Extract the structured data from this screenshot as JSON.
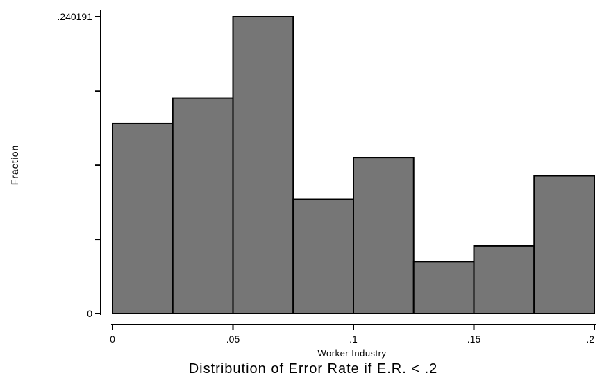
{
  "chart_data": {
    "type": "bar",
    "subtype": "histogram",
    "title": "Distribution of Error Rate if E.R. < .2",
    "xlabel": "Worker Industry",
    "ylabel": "Fraction",
    "bin_edges": [
      0,
      0.025,
      0.05,
      0.075,
      0.1,
      0.125,
      0.15,
      0.175,
      0.2
    ],
    "values": [
      0.1538,
      0.1742,
      0.240191,
      0.0923,
      0.1262,
      0.0419,
      0.0545,
      0.1114
    ],
    "xlim": [
      0,
      0.2
    ],
    "ylim": [
      0,
      0.240191
    ],
    "x_ticks": [
      {
        "value": 0,
        "label": "0"
      },
      {
        "value": 0.05,
        "label": ".05"
      },
      {
        "value": 0.1,
        "label": ".1"
      },
      {
        "value": 0.15,
        "label": ".15"
      },
      {
        "value": 0.2,
        "label": ".2"
      }
    ],
    "y_ticks_labeled": [
      {
        "value": 0,
        "label": "0"
      },
      {
        "value": 0.240191,
        "label": ".240191"
      }
    ],
    "y_ticks_unlabeled": [
      0.06,
      0.12,
      0.18
    ],
    "bar_color": "#767676",
    "bar_edge_color": "#000000",
    "grid": false
  }
}
